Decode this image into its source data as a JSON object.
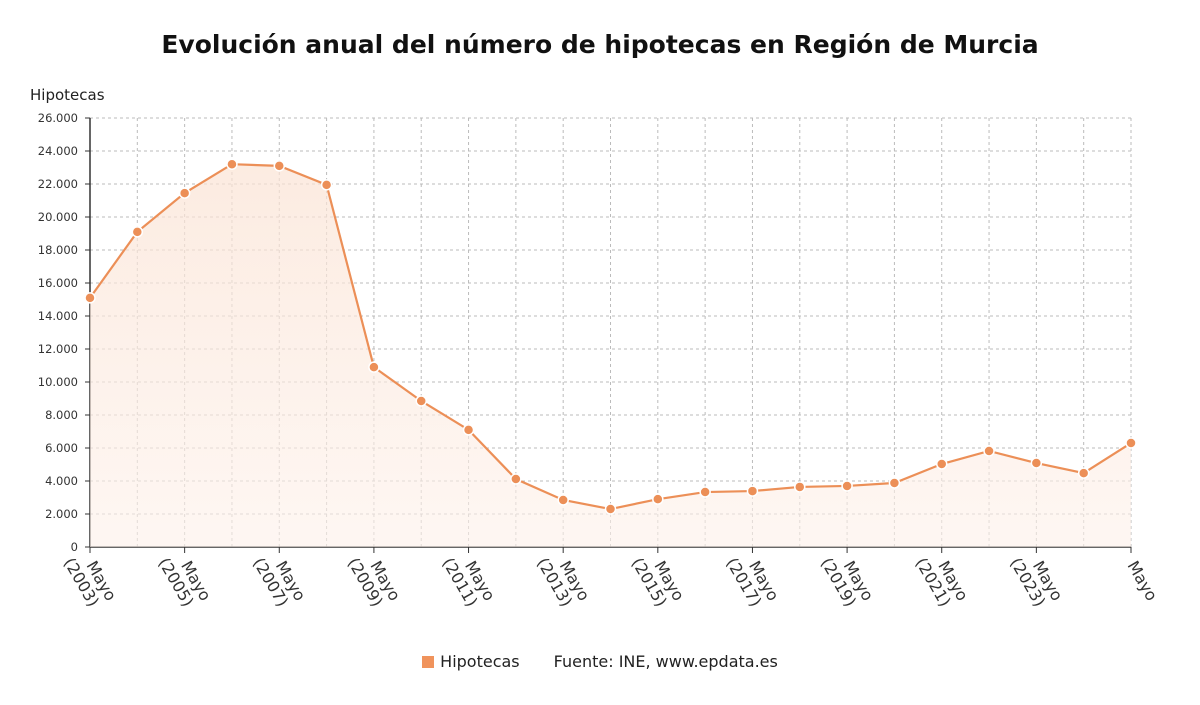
{
  "chart_data": {
    "type": "area",
    "title": "Evolución anual del número de hipotecas en Región de Murcia",
    "ylabel": "Hipotecas",
    "xlabel": "",
    "x": [
      2003,
      2004,
      2005,
      2006,
      2007,
      2008,
      2009,
      2010,
      2011,
      2012,
      2013,
      2014,
      2015,
      2016,
      2017,
      2018,
      2019,
      2020,
      2021,
      2022,
      2023,
      2024,
      2025
    ],
    "x_tick_labels": [
      "Mayo\n(2003)",
      "Mayo\n(2005)",
      "Mayo\n(2007)",
      "Mayo\n(2009)",
      "Mayo\n(2011)",
      "Mayo\n(2013)",
      "Mayo\n(2015)",
      "Mayo\n(2017)",
      "Mayo\n(2019)",
      "Mayo\n(2021)",
      "Mayo\n(2023)",
      "Mayo"
    ],
    "x_tick_years": [
      2003,
      2005,
      2007,
      2009,
      2011,
      2013,
      2015,
      2017,
      2019,
      2021,
      2023,
      2025
    ],
    "series": [
      {
        "name": "Hipotecas",
        "color": "#ec8f57",
        "values": [
          15100,
          19100,
          21450,
          23200,
          23100,
          21950,
          10900,
          8850,
          7100,
          4120,
          2850,
          2300,
          2900,
          3330,
          3390,
          3640,
          3700,
          3880,
          5030,
          5820,
          5090,
          4480,
          6300
        ]
      }
    ],
    "ylim": [
      0,
      26000
    ],
    "y_ticks": [
      "0",
      "2.000",
      "4.000",
      "6.000",
      "8.000",
      "10.000",
      "12.000",
      "14.000",
      "16.000",
      "18.000",
      "20.000",
      "22.000",
      "24.000",
      "26.000"
    ],
    "grid": true,
    "legend_position": "bottom-center",
    "legend": {
      "label": "Hipotecas",
      "source": "Fuente: INE, www.epdata.es"
    }
  }
}
